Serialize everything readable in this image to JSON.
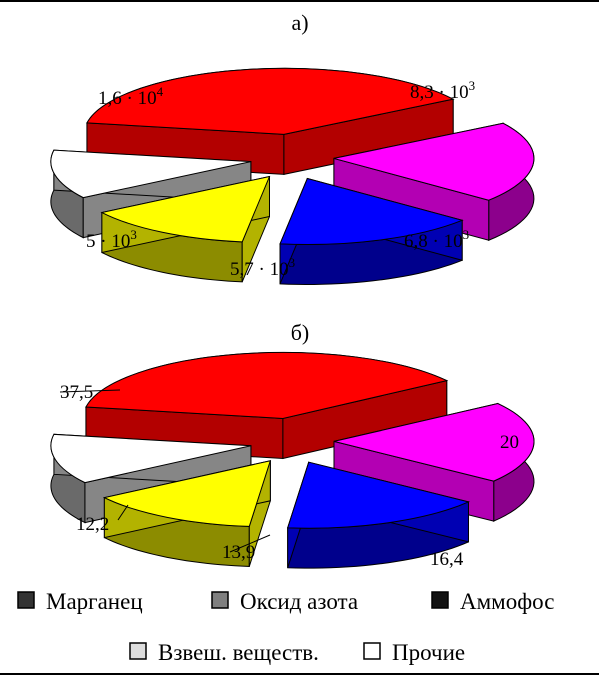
{
  "chart_data": [
    {
      "type": "pie",
      "title": "а)",
      "categories": [
        "Марганец",
        "Оксид азота",
        "Аммофос",
        "Взвеш. веществ.",
        "Прочие"
      ],
      "values": [
        16000,
        8300,
        6800,
        5700,
        5000
      ],
      "labels": [
        {
          "base": "1,6 · 10",
          "exp": "4"
        },
        {
          "base": "8,3 · 10",
          "exp": "3"
        },
        {
          "base": "6,8 · 10",
          "exp": "3"
        },
        {
          "base": "5,7 · 10",
          "exp": "3"
        },
        {
          "base": "5 · 10",
          "exp": "3"
        }
      ],
      "colors": [
        "#ff0000",
        "#ff00ff",
        "#0000ff",
        "#ffff00",
        "#ffffff"
      ],
      "style": "3d-exploded"
    },
    {
      "type": "pie",
      "title": "б)",
      "categories": [
        "Марганец",
        "Оксид азота",
        "Аммофос",
        "Взвеш. веществ.",
        "Прочие"
      ],
      "values": [
        37.5,
        20,
        16.4,
        13.9,
        12.2
      ],
      "labels": [
        "37,5",
        "20",
        "16,4",
        "13,9",
        "12,2"
      ],
      "colors": [
        "#ff0000",
        "#ff00ff",
        "#0000ff",
        "#ffff00",
        "#ffffff"
      ],
      "style": "3d-exploded"
    }
  ],
  "legend": [
    {
      "label": "Марганец",
      "color": "#333333"
    },
    {
      "label": "Оксид азота",
      "color": "#808080"
    },
    {
      "label": "Аммофос",
      "color": "#111111"
    },
    {
      "label": "Взвеш. веществ.",
      "color": "#dddddd"
    },
    {
      "label": "Прочие",
      "color": "#ffffff"
    }
  ]
}
